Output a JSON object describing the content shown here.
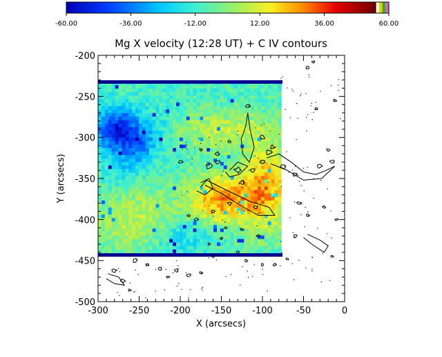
{
  "colorbar": {
    "ticks": [
      "-60.00",
      "-36.00",
      "-12.00",
      "12.00",
      "36.00",
      "60.00"
    ],
    "tick_values": [
      -60,
      -36,
      -12,
      12,
      36,
      60
    ],
    "range": [
      -60,
      60
    ],
    "end_swatches": [
      "#f8f8f0",
      "#f0d000",
      "#30b030",
      "#e060c0"
    ]
  },
  "chart_data": {
    "type": "heatmap",
    "title": "Mg X velocity (12:28 UT) + C IV contours",
    "xlabel": "X (arcsecs)",
    "ylabel": "Y (arcsecs)",
    "xlim": [
      -300,
      0
    ],
    "ylim": [
      -500,
      -200
    ],
    "xticks": [
      "-300",
      "-250",
      "-200",
      "-150",
      "-100",
      "-50",
      "0"
    ],
    "xtick_values": [
      -300,
      -250,
      -200,
      -150,
      -100,
      -50,
      0
    ],
    "yticks": [
      "-200",
      "-250",
      "-300",
      "-350",
      "-400",
      "-450",
      "-500"
    ],
    "ytick_values": [
      -200,
      -250,
      -300,
      -350,
      -400,
      -450,
      -500
    ],
    "raster_extent": {
      "x": [
        -300,
        -77
      ],
      "y": [
        -445,
        -232
      ]
    },
    "colormap": "rainbow (blue → cyan → green → yellow → red → dark red)",
    "value_range": [
      -60,
      60
    ],
    "value_unit": "velocity",
    "features": [
      {
        "desc": "strong blue-shifted (negative) region",
        "x": [
          -300,
          -250
        ],
        "y": [
          -320,
          -260
        ]
      },
      {
        "desc": "red-shifted (positive) region along C IV loop system",
        "x": [
          -180,
          -77
        ],
        "y": [
          -410,
          -300
        ]
      }
    ],
    "overlay": "C IV intensity contours (black)",
    "grid": false
  }
}
